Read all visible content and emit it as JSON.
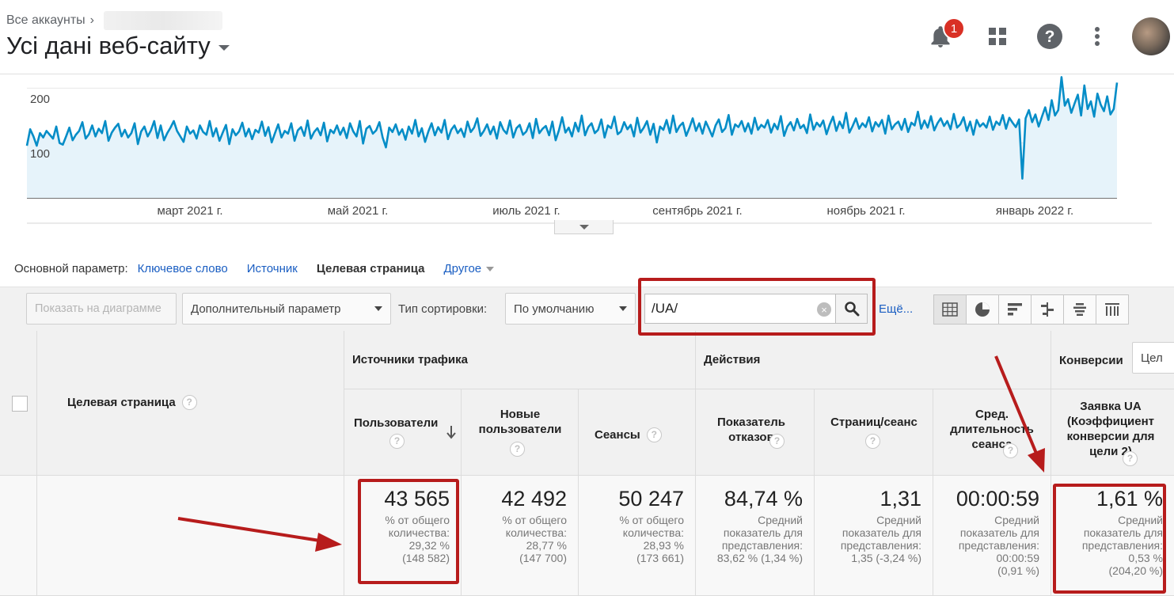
{
  "header": {
    "breadcrumb": "Все аккаунты",
    "view_title": "Усі дані веб-сайту",
    "notification_count": "1"
  },
  "chart_data": {
    "type": "line",
    "title": "",
    "y_ticks": [
      "200",
      "100"
    ],
    "ylim": [
      0,
      225
    ],
    "x_labels": [
      "март 2021 г.",
      "май 2021 г.",
      "июль 2021 г.",
      "сентябрь 2021 г.",
      "ноябрь 2021 г.",
      "январь 2022 г."
    ],
    "series": [
      {
        "color": "#058dc7",
        "fill": "#e6f3fa",
        "values": [
          95,
          125,
          112,
          95,
          118,
          110,
          122,
          115,
          108,
          130,
          100,
          97,
          112,
          128,
          105,
          115,
          122,
          138,
          108,
          116,
          132,
          112,
          126,
          118,
          140,
          104,
          119,
          128,
          135,
          112,
          124,
          110,
          118,
          136,
          98,
          121,
          130,
          112,
          123,
          140,
          109,
          132,
          105,
          118,
          128,
          140,
          122,
          112,
          102,
          130,
          117,
          123,
          108,
          132,
          120,
          115,
          140,
          112,
          127,
          104,
          119,
          133,
          98,
          125,
          114,
          121,
          137,
          112,
          126,
          107,
          124,
          119,
          139,
          113,
          129,
          101,
          118,
          134,
          110,
          122,
          117,
          136,
          104,
          123,
          129,
          113,
          141,
          108,
          120,
          127,
          114,
          137,
          103,
          124,
          118,
          132,
          115,
          128,
          109,
          136,
          121,
          112,
          140,
          99,
          126,
          131,
          117,
          123,
          138,
          110,
          92,
          128,
          120,
          134,
          115,
          125,
          106,
          130,
          117,
          142,
          112,
          127,
          102,
          121,
          136,
          114,
          129,
          119,
          142,
          107,
          124,
          132,
          118,
          126,
          111,
          139,
          120,
          128,
          145,
          113,
          122,
          134,
          116,
          130,
          108,
          138,
          124,
          117,
          141,
          110,
          127,
          133,
          115,
          121,
          136,
          109,
          144,
          118,
          126,
          131,
          114,
          139,
          105,
          123,
          147,
          119,
          128,
          112,
          137,
          121,
          150,
          114,
          129,
          136,
          118,
          124,
          143,
          110,
          132,
          127,
          148,
          116,
          121,
          138,
          125,
          133,
          112,
          146,
          119,
          128,
          140,
          115,
          135,
          101,
          130,
          124,
          142,
          118,
          150,
          120,
          131,
          137,
          113,
          128,
          145,
          122,
          136,
          117,
          139,
          126,
          112,
          132,
          143,
          120,
          127,
          151,
          115,
          134,
          129,
          140,
          121,
          136,
          117,
          146,
          124,
          133,
          128,
          142,
          119,
          135,
          125,
          149,
          113,
          130,
          138,
          123,
          144,
          127,
          133,
          118,
          152,
          124,
          137,
          130,
          141,
          116,
          134,
          148,
          122,
          139,
          127,
          155,
          119,
          131,
          145,
          126,
          136,
          129,
          147,
          121,
          138,
          130,
          142,
          117,
          150,
          125,
          134,
          139,
          124,
          144,
          120,
          137,
          132,
          157,
          126,
          141,
          128,
          149,
          123,
          136,
          145,
          131,
          140,
          125,
          153,
          128,
          134,
          147,
          122,
          139,
          115,
          142,
          130,
          136,
          128,
          148,
          124,
          139,
          133,
          151,
          126,
          146,
          137,
          129,
          143,
          35,
          145,
          160,
          138,
          152,
          130,
          148,
          165,
          142,
          178,
          150,
          160,
          220,
          168,
          180,
          155,
          172,
          188,
          150,
          205,
          162,
          176,
          148,
          190,
          170,
          158,
          185,
          152,
          162,
          210
        ]
      }
    ]
  },
  "primary_dimension": {
    "label": "Основной параметр:",
    "options": [
      "Ключевое слово",
      "Источник",
      "Целевая страница"
    ],
    "active": "Целевая страница",
    "other": "Другое"
  },
  "toolbar": {
    "plot_button": "Показать на диаграмме",
    "secondary_dim": "Дополнительный параметр",
    "sort_label": "Тип сортировки:",
    "sort_value": "По умолчанию",
    "search_value": "/UA/",
    "more_link": "Ещё..."
  },
  "table": {
    "group_traffic": "Источники трафика",
    "group_actions": "Действия",
    "group_conversions": "Конверсии",
    "conv_select": "Цел",
    "dim_header": "Целевая страница",
    "columns": [
      {
        "title": "Пользователи",
        "value": "43 565",
        "sub1": "% от общего",
        "sub2": "количества:",
        "sub3": "29,32 %",
        "sub4": "(148 582)"
      },
      {
        "title": "Новые пользователи",
        "value": "42 492",
        "sub1": "% от общего",
        "sub2": "количества:",
        "sub3": "28,77 %",
        "sub4": "(147 700)"
      },
      {
        "title": "Сеансы",
        "value": "50 247",
        "sub1": "% от общего",
        "sub2": "количества:",
        "sub3": "28,93 %",
        "sub4": "(173 661)"
      },
      {
        "title": "Показатель отказов",
        "value": "84,74 %",
        "sub1": "Средний",
        "sub2": "показатель для",
        "sub3": "представления:",
        "sub4": "83,62 % (1,34 %)"
      },
      {
        "title": "Страниц/сеанс",
        "value": "1,31",
        "sub1": "Средний",
        "sub2": "показатель для",
        "sub3": "представления:",
        "sub4": "1,35 (-3,24 %)"
      },
      {
        "title": "Сред. длительность сеанса",
        "value": "00:00:59",
        "sub1": "Средний",
        "sub2": "показатель для",
        "sub3": "представления:",
        "sub4": "00:00:59",
        "sub5": "(0,91 %)"
      },
      {
        "title": "Заявка UA (Коэффициент конверсии для цели 2)",
        "value": "1,61 %",
        "sub1": "Средний",
        "sub2": "показатель для",
        "sub3": "представления:",
        "sub4": "0,53 %",
        "sub5": "(204,20 %)"
      }
    ]
  },
  "colors": {
    "line": "#058dc7",
    "highlight": "#b71c1c",
    "link": "#1a5ec2"
  }
}
